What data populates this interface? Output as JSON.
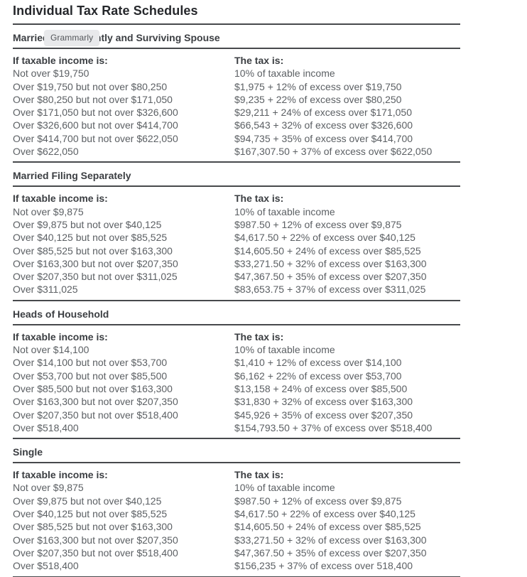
{
  "page": {
    "title": "Individual Tax Rate Schedules"
  },
  "grammarly": {
    "label": "Grammarly"
  },
  "columns": {
    "income": "If taxable income is:",
    "tax": "The tax is:"
  },
  "sections": [
    {
      "title": "Married Filing Jointly and Surviving Spouse",
      "rows": [
        {
          "income": "Not over $19,750",
          "tax": "10% of taxable income"
        },
        {
          "income": "Over $19,750 but not over $80,250",
          "tax": "$1,975 + 12% of excess over $19,750"
        },
        {
          "income": "Over $80,250 but not over $171,050",
          "tax": "$9,235 + 22% of excess over $80,250"
        },
        {
          "income": "Over $171,050 but not over $326,600",
          "tax": "$29,211 + 24% of excess over $171,050"
        },
        {
          "income": "Over $326,600 but not over $414,700",
          "tax": "$66,543 + 32% of excess over $326,600"
        },
        {
          "income": "Over $414,700 but not over $622,050",
          "tax": "$94,735 + 35% of excess over $414,700"
        },
        {
          "income": "Over $622,050",
          "tax": "$167,307.50 + 37% of excess over $622,050"
        }
      ]
    },
    {
      "title": "Married Filing Separately",
      "rows": [
        {
          "income": "Not over $9,875",
          "tax": "10% of taxable income"
        },
        {
          "income": "Over $9,875 but not over $40,125",
          "tax": "$987.50 + 12% of excess over $9,875"
        },
        {
          "income": "Over $40,125 but not over $85,525",
          "tax": "$4,617.50 + 22% of excess over $40,125"
        },
        {
          "income": "Over $85,525 but not over $163,300",
          "tax": "$14,605.50 + 24% of excess over $85,525"
        },
        {
          "income": "Over $163,300 but not over $207,350",
          "tax": "$33,271.50 + 32% of excess over $163,300"
        },
        {
          "income": "Over $207,350 but not over $311,025",
          "tax": "$47,367.50 + 35% of excess over $207,350"
        },
        {
          "income": "Over $311,025",
          "tax": "$83,653.75 + 37% of excess over $311,025"
        }
      ]
    },
    {
      "title": "Heads of Household",
      "rows": [
        {
          "income": "Not over $14,100",
          "tax": "10% of taxable income"
        },
        {
          "income": "Over $14,100 but not over $53,700",
          "tax": "$1,410 + 12% of excess over $14,100"
        },
        {
          "income": "Over $53,700 but not over $85,500",
          "tax": "$6,162 + 22% of excess over $53,700"
        },
        {
          "income": "Over $85,500 but not over $163,300",
          "tax": "$13,158 + 24% of excess over $85,500"
        },
        {
          "income": "Over $163,300 but not over $207,350",
          "tax": "$31,830 + 32% of excess over $163,300"
        },
        {
          "income": "Over $207,350 but not over $518,400",
          "tax": "$45,926 + 35% of excess over $207,350"
        },
        {
          "income": "Over $518,400",
          "tax": "$154,793.50 + 37% of excess over $518,400"
        }
      ]
    },
    {
      "title": "Single",
      "rows": [
        {
          "income": "Not over $9,875",
          "tax": "10% of taxable income"
        },
        {
          "income": "Over $9,875 but not over $40,125",
          "tax": "$987.50 + 12% of excess over $9,875"
        },
        {
          "income": "Over $40,125 but not over $85,525",
          "tax": "$4,617.50 + 22% of excess over $40,125"
        },
        {
          "income": "Over $85,525 but not over $163,300",
          "tax": "$14,605.50 + 24% of excess over $85,525"
        },
        {
          "income": "Over $163,300 but not over $207,350",
          "tax": "$33,271.50 + 32% of excess over $163,300"
        },
        {
          "income": "Over $207,350 but not over $518,400",
          "tax": "$47,367.50 + 35% of excess over $207,350"
        },
        {
          "income": "Over $518,400",
          "tax": "$156,235 + 37% of excess over 518,400"
        }
      ]
    }
  ],
  "colors": {
    "title_text": "#26282c",
    "heading_text": "#3b3e42",
    "body_text": "#5c6064",
    "rule": "#47494c",
    "badge_bg": "#e8e9eb",
    "badge_text": "#53565a"
  }
}
